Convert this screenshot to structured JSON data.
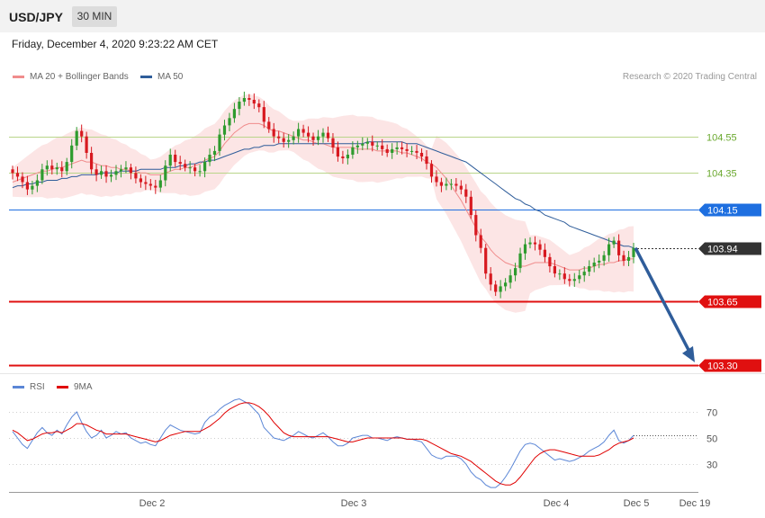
{
  "header": {
    "symbol": "USD/JPY",
    "timeframe": "30 MIN"
  },
  "datetime": "Friday, December 4, 2020 9:23:22 AM CET",
  "legend": {
    "ma20": {
      "label": "MA 20 + Bollinger Bands",
      "color": "#f08c8c"
    },
    "ma50": {
      "label": "MA 50",
      "color": "#2f5d9a"
    },
    "credit": "Research © 2020 Trading Central"
  },
  "rsi_legend": {
    "rsi": {
      "label": "RSI",
      "color": "#5b86d6"
    },
    "ma9": {
      "label": "9MA",
      "color": "#e00000"
    }
  },
  "chart_data": {
    "type": "candlestick",
    "x_ticks": [
      "Dec 2",
      "Dec 3",
      "Dec 4",
      "Dec 5",
      "Dec 19"
    ],
    "price_levels": [
      {
        "label": "104.55",
        "value": 104.55,
        "kind": "resistance",
        "color": "#b9d58a"
      },
      {
        "label": "104.35",
        "value": 104.35,
        "kind": "resistance",
        "color": "#b9d58a"
      },
      {
        "label": "104.15",
        "value": 104.15,
        "kind": "pivot",
        "color": "#1e6fe0"
      },
      {
        "label": "103.94",
        "value": 103.94,
        "kind": "last",
        "color": "#333333"
      },
      {
        "label": "103.65",
        "value": 103.65,
        "kind": "support",
        "color": "#e01010"
      },
      {
        "label": "103.30",
        "value": 103.3,
        "kind": "support",
        "color": "#e01010"
      }
    ],
    "forecast": {
      "from": 103.94,
      "to": 103.3,
      "direction": "down",
      "color": "#2f5d9a"
    },
    "close": [
      104.35,
      104.33,
      104.3,
      104.26,
      104.28,
      104.31,
      104.37,
      104.39,
      104.37,
      104.38,
      104.36,
      104.41,
      104.5,
      104.58,
      104.55,
      104.46,
      104.37,
      104.34,
      104.36,
      104.33,
      104.34,
      104.36,
      104.37,
      104.38,
      104.35,
      104.32,
      104.3,
      104.29,
      104.28,
      104.27,
      104.31,
      104.39,
      104.45,
      104.41,
      104.4,
      104.38,
      104.38,
      104.36,
      104.36,
      104.41,
      104.45,
      104.47,
      104.56,
      104.61,
      104.65,
      104.7,
      104.74,
      104.76,
      104.75,
      104.73,
      104.71,
      104.63,
      104.59,
      104.55,
      104.54,
      104.52,
      104.53,
      104.55,
      104.59,
      104.57,
      104.55,
      104.53,
      104.55,
      104.57,
      104.54,
      104.49,
      104.44,
      104.43,
      104.45,
      104.49,
      104.5,
      104.51,
      104.52,
      104.5,
      104.5,
      104.48,
      104.46,
      104.48,
      104.49,
      104.48,
      104.47,
      104.47,
      104.46,
      104.44,
      104.4,
      104.33,
      104.3,
      104.28,
      104.29,
      104.29,
      104.28,
      104.26,
      104.22,
      104.12,
      104.01,
      103.94,
      103.8,
      103.74,
      103.7,
      103.73,
      103.75,
      103.79,
      103.83,
      103.91,
      103.96,
      103.97,
      103.96,
      103.93,
      103.89,
      103.84,
      103.8,
      103.8,
      103.77,
      103.76,
      103.77,
      103.79,
      103.81,
      103.84,
      103.86,
      103.87,
      103.9,
      103.96,
      103.98,
      103.9,
      103.87,
      103.89,
      103.94
    ],
    "ma20": [
      104.3,
      104.31,
      104.32,
      104.33,
      104.34,
      104.35,
      104.36,
      104.36,
      104.37,
      104.38,
      104.38,
      104.39,
      104.4,
      104.41,
      104.42,
      104.41,
      104.41,
      104.4,
      104.39,
      104.39,
      104.38,
      104.38,
      104.37,
      104.37,
      104.36,
      104.36,
      104.35,
      104.35,
      104.34,
      104.34,
      104.34,
      104.35,
      104.36,
      104.37,
      104.37,
      104.38,
      104.38,
      104.39,
      104.4,
      104.42,
      104.43,
      104.44,
      104.47,
      104.51,
      104.54,
      104.57,
      104.59,
      104.61,
      104.62,
      104.62,
      104.62,
      104.61,
      104.59,
      104.58,
      104.58,
      104.57,
      104.56,
      104.55,
      104.54,
      104.53,
      104.53,
      104.52,
      104.51,
      104.51,
      104.5,
      104.49,
      104.49,
      104.49,
      104.49,
      104.49,
      104.48,
      104.48,
      104.48,
      104.48,
      104.47,
      104.47,
      104.47,
      104.47,
      104.47,
      104.46,
      104.46,
      104.45,
      104.44,
      104.43,
      104.41,
      104.4,
      104.38,
      104.35,
      104.32,
      104.28,
      104.24,
      104.2,
      104.15,
      104.1,
      104.05,
      104.0,
      103.97,
      103.93,
      103.9,
      103.88,
      103.86,
      103.85,
      103.84,
      103.84,
      103.84,
      103.85,
      103.86,
      103.86,
      103.86,
      103.86,
      103.85,
      103.84,
      103.83,
      103.82,
      103.82,
      103.82,
      103.83,
      103.83,
      103.84,
      103.85,
      103.85,
      103.86,
      103.86,
      103.87,
      103.87,
      103.88,
      103.88
    ],
    "ma50": [
      104.27,
      104.28,
      104.28,
      104.29,
      104.29,
      104.3,
      104.3,
      104.31,
      104.31,
      104.31,
      104.32,
      104.32,
      104.33,
      104.33,
      104.34,
      104.34,
      104.34,
      104.34,
      104.35,
      104.35,
      104.35,
      104.35,
      104.36,
      104.36,
      104.36,
      104.36,
      104.37,
      104.37,
      104.37,
      104.37,
      104.37,
      104.38,
      104.38,
      104.38,
      104.39,
      104.39,
      104.4,
      104.4,
      104.41,
      104.41,
      104.42,
      104.42,
      104.43,
      104.44,
      104.45,
      104.46,
      104.47,
      104.48,
      104.48,
      104.49,
      104.49,
      104.5,
      104.5,
      104.5,
      104.51,
      104.51,
      104.51,
      104.51,
      104.51,
      104.51,
      104.51,
      104.51,
      104.51,
      104.51,
      104.51,
      104.51,
      104.51,
      104.51,
      104.51,
      104.51,
      104.51,
      104.51,
      104.52,
      104.52,
      104.52,
      104.52,
      104.52,
      104.52,
      104.52,
      104.52,
      104.51,
      104.51,
      104.51,
      104.5,
      104.49,
      104.48,
      104.47,
      104.46,
      104.45,
      104.44,
      104.43,
      104.42,
      104.41,
      104.39,
      104.37,
      104.35,
      104.33,
      104.31,
      104.29,
      104.27,
      104.25,
      104.23,
      104.21,
      104.2,
      104.18,
      104.17,
      104.15,
      104.14,
      104.12,
      104.11,
      104.1,
      104.09,
      104.08,
      104.06,
      104.05,
      104.04,
      104.03,
      104.02,
      104.01,
      104.0,
      103.99,
      103.98,
      103.97,
      103.96,
      103.95,
      103.95,
      103.94
    ],
    "rsi": {
      "ticks": [
        70,
        50,
        30
      ],
      "rsi": [
        55,
        50,
        45,
        42,
        48,
        54,
        58,
        54,
        52,
        56,
        53,
        60,
        66,
        70,
        62,
        55,
        50,
        52,
        56,
        50,
        52,
        55,
        53,
        54,
        50,
        48,
        46,
        47,
        45,
        44,
        50,
        56,
        60,
        58,
        56,
        55,
        54,
        53,
        54,
        62,
        66,
        68,
        72,
        75,
        77,
        79,
        80,
        78,
        76,
        72,
        68,
        58,
        54,
        50,
        49,
        48,
        50,
        52,
        55,
        53,
        51,
        50,
        52,
        54,
        51,
        47,
        44,
        44,
        46,
        50,
        51,
        52,
        52,
        50,
        50,
        49,
        48,
        50,
        51,
        50,
        49,
        49,
        48,
        47,
        42,
        37,
        35,
        34,
        36,
        36,
        36,
        34,
        30,
        24,
        20,
        18,
        14,
        12,
        12,
        15,
        20,
        26,
        33,
        40,
        45,
        46,
        45,
        42,
        39,
        36,
        33,
        34,
        33,
        32,
        33,
        35,
        37,
        40,
        42,
        44,
        47,
        52,
        56,
        48,
        46,
        48,
        52
      ],
      "ma9": [
        56,
        54,
        51,
        48,
        49,
        51,
        53,
        54,
        54,
        55,
        54,
        56,
        58,
        61,
        61,
        60,
        58,
        56,
        55,
        53,
        53,
        53,
        53,
        53,
        52,
        51,
        50,
        49,
        48,
        47,
        48,
        50,
        52,
        53,
        54,
        55,
        55,
        55,
        55,
        57,
        59,
        62,
        65,
        69,
        72,
        74,
        76,
        77,
        77,
        76,
        74,
        71,
        67,
        62,
        58,
        54,
        52,
        51,
        51,
        51,
        51,
        51,
        51,
        51,
        51,
        50,
        49,
        48,
        47,
        47,
        48,
        49,
        50,
        50,
        50,
        50,
        50,
        50,
        50,
        50,
        49,
        49,
        49,
        49,
        48,
        46,
        44,
        42,
        40,
        38,
        37,
        36,
        34,
        32,
        29,
        26,
        23,
        20,
        17,
        15,
        14,
        14,
        16,
        20,
        25,
        30,
        35,
        38,
        40,
        41,
        41,
        40,
        39,
        38,
        37,
        36,
        36,
        36,
        36,
        37,
        39,
        41,
        44,
        46,
        47,
        48,
        50
      ]
    }
  }
}
